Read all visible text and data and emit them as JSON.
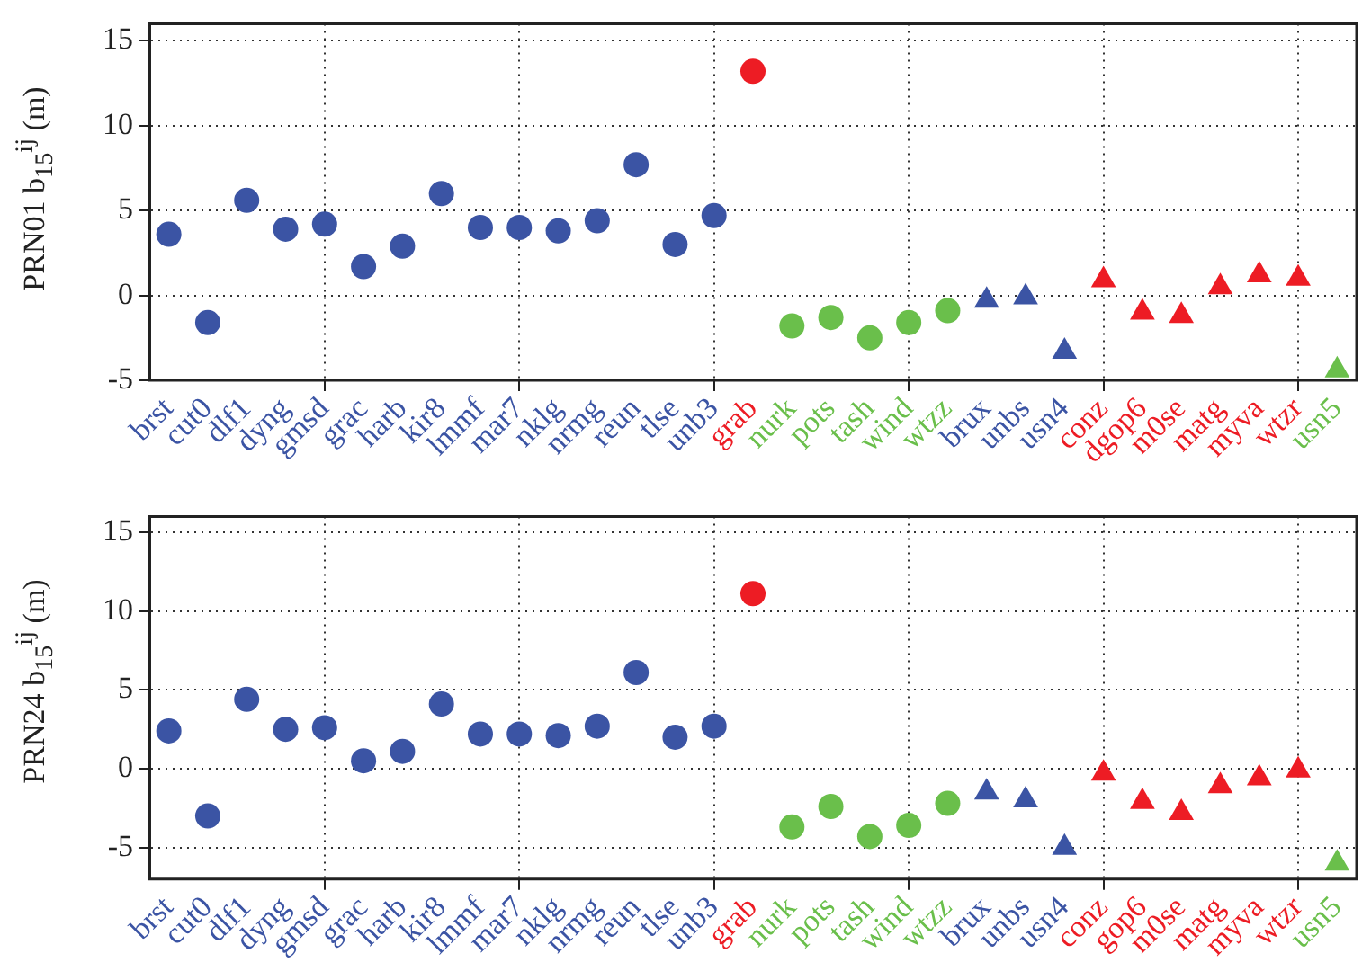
{
  "chart_data": [
    {
      "type": "scatter",
      "ylabel": "PRN01 b$_{15}$$^{ij}$ (m)",
      "categories": [
        "brst",
        "cut0",
        "dlf1",
        "dyng",
        "gmsd",
        "grac",
        "harb",
        "kir8",
        "lmmf",
        "mar7",
        "nklg",
        "nrmg",
        "reun",
        "tlse",
        "unb3",
        "grab",
        "nurk",
        "pots",
        "tash",
        "wind",
        "wtzz",
        "brux",
        "unbs",
        "usn4",
        "conz",
        "dgop6",
        "m0se",
        "matg",
        "myva",
        "wtzr",
        "usn5"
      ],
      "ylim": [
        -5,
        16
      ],
      "yticks": [
        -5,
        0,
        5,
        10,
        15
      ],
      "grid": true,
      "legend": false,
      "series": [
        {
          "color": "#3b54a4",
          "marker": "circle",
          "values": [
            3.6,
            -1.6,
            5.6,
            3.9,
            4.2,
            1.7,
            2.9,
            6.0,
            4.0,
            4.0,
            3.8,
            4.4,
            7.7,
            3.0,
            4.7,
            null,
            null,
            null,
            null,
            null,
            null,
            null,
            null,
            null,
            null,
            null,
            null,
            null,
            null,
            null,
            null
          ]
        },
        {
          "color": "#ed1c24",
          "marker": "circle",
          "values": [
            null,
            null,
            null,
            null,
            null,
            null,
            null,
            null,
            null,
            null,
            null,
            null,
            null,
            null,
            null,
            13.2,
            null,
            null,
            null,
            null,
            null,
            null,
            null,
            null,
            null,
            null,
            null,
            null,
            null,
            null,
            null
          ]
        },
        {
          "color": "#6abf4b",
          "marker": "circle",
          "values": [
            null,
            null,
            null,
            null,
            null,
            null,
            null,
            null,
            null,
            null,
            null,
            null,
            null,
            null,
            null,
            null,
            -1.8,
            -1.3,
            -2.5,
            -1.6,
            -0.9,
            null,
            null,
            null,
            null,
            null,
            null,
            null,
            null,
            null,
            null
          ]
        },
        {
          "color": "#3b54a4",
          "marker": "triangle",
          "values": [
            null,
            null,
            null,
            null,
            null,
            null,
            null,
            null,
            null,
            null,
            null,
            null,
            null,
            null,
            null,
            null,
            null,
            null,
            null,
            null,
            null,
            -0.3,
            -0.1,
            -3.3,
            null,
            null,
            null,
            null,
            null,
            null,
            null
          ]
        },
        {
          "color": "#ed1c24",
          "marker": "triangle",
          "values": [
            null,
            null,
            null,
            null,
            null,
            null,
            null,
            null,
            null,
            null,
            null,
            null,
            null,
            null,
            null,
            null,
            null,
            null,
            null,
            null,
            null,
            null,
            null,
            null,
            0.9,
            -1.0,
            -1.2,
            0.5,
            1.2,
            1.0,
            null
          ]
        },
        {
          "color": "#6abf4b",
          "marker": "triangle",
          "values": [
            null,
            null,
            null,
            null,
            null,
            null,
            null,
            null,
            null,
            null,
            null,
            null,
            null,
            null,
            null,
            null,
            null,
            null,
            null,
            null,
            null,
            null,
            null,
            null,
            null,
            null,
            null,
            null,
            null,
            null,
            -4.4
          ]
        }
      ]
    },
    {
      "type": "scatter",
      "ylabel": "PRN24 b$_{15}$$^{ij}$ (m)",
      "categories": [
        "brst",
        "cut0",
        "dlf1",
        "dyng",
        "gmsd",
        "grac",
        "harb",
        "kir8",
        "lmmf",
        "mar7",
        "nklg",
        "nrmg",
        "reun",
        "tlse",
        "unb3",
        "grab",
        "nurk",
        "pots",
        "tash",
        "wind",
        "wtzz",
        "brux",
        "unbs",
        "usn4",
        "conz",
        "gop6",
        "m0se",
        "matg",
        "myva",
        "wtzr",
        "usn5"
      ],
      "ylim": [
        -7,
        16
      ],
      "yticks": [
        -5,
        0,
        5,
        10,
        15
      ],
      "grid": true,
      "legend": false,
      "series": [
        {
          "color": "#3b54a4",
          "marker": "circle",
          "values": [
            2.4,
            -3.0,
            4.4,
            2.5,
            2.6,
            0.5,
            1.1,
            4.1,
            2.2,
            2.2,
            2.1,
            2.7,
            6.1,
            2.0,
            2.7,
            null,
            null,
            null,
            null,
            null,
            null,
            null,
            null,
            null,
            null,
            null,
            null,
            null,
            null,
            null,
            null
          ]
        },
        {
          "color": "#ed1c24",
          "marker": "circle",
          "values": [
            null,
            null,
            null,
            null,
            null,
            null,
            null,
            null,
            null,
            null,
            null,
            null,
            null,
            null,
            null,
            11.1,
            null,
            null,
            null,
            null,
            null,
            null,
            null,
            null,
            null,
            null,
            null,
            null,
            null,
            null,
            null
          ]
        },
        {
          "color": "#6abf4b",
          "marker": "circle",
          "values": [
            null,
            null,
            null,
            null,
            null,
            null,
            null,
            null,
            null,
            null,
            null,
            null,
            null,
            null,
            null,
            null,
            -3.7,
            -2.4,
            -4.3,
            -3.6,
            -2.2,
            null,
            null,
            null,
            null,
            null,
            null,
            null,
            null,
            null,
            null
          ]
        },
        {
          "color": "#3b54a4",
          "marker": "triangle",
          "values": [
            null,
            null,
            null,
            null,
            null,
            null,
            null,
            null,
            null,
            null,
            null,
            null,
            null,
            null,
            null,
            null,
            null,
            null,
            null,
            null,
            null,
            -1.5,
            -2.0,
            -5.0,
            null,
            null,
            null,
            null,
            null,
            null,
            null
          ]
        },
        {
          "color": "#ed1c24",
          "marker": "triangle",
          "values": [
            null,
            null,
            null,
            null,
            null,
            null,
            null,
            null,
            null,
            null,
            null,
            null,
            null,
            null,
            null,
            null,
            null,
            null,
            null,
            null,
            null,
            null,
            null,
            null,
            -0.3,
            -2.1,
            -2.8,
            -1.1,
            -0.6,
            -0.1,
            null
          ]
        },
        {
          "color": "#6abf4b",
          "marker": "triangle",
          "values": [
            null,
            null,
            null,
            null,
            null,
            null,
            null,
            null,
            null,
            null,
            null,
            null,
            null,
            null,
            null,
            null,
            null,
            null,
            null,
            null,
            null,
            null,
            null,
            null,
            null,
            null,
            null,
            null,
            null,
            null,
            -6.0
          ]
        }
      ]
    }
  ]
}
